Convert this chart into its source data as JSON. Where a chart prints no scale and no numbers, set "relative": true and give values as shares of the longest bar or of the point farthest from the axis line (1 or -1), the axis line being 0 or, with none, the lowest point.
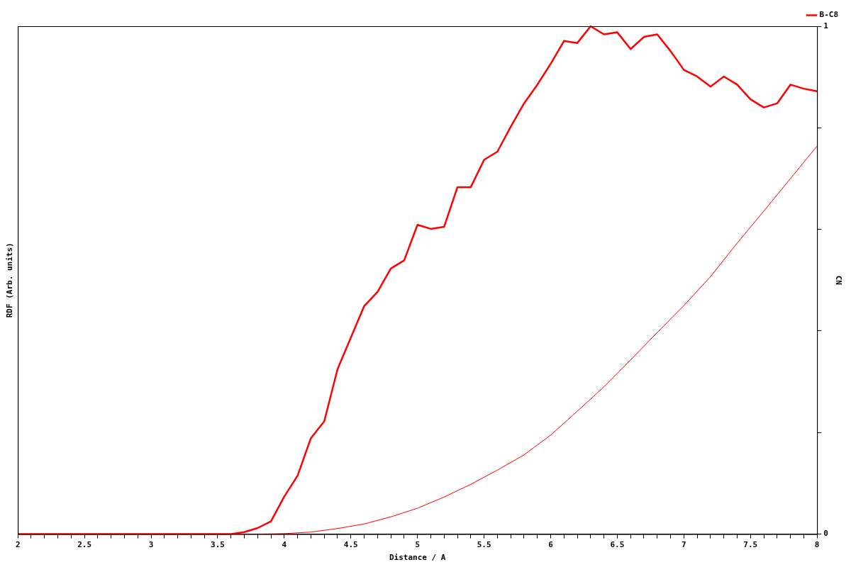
{
  "chart_data": {
    "type": "line",
    "xlabel": "Distance / A",
    "ylabel": "RDF (Arb. units)",
    "y2label": "CN",
    "relative": true,
    "legend": "top right",
    "grid": false,
    "xlim": [
      2,
      8
    ],
    "xticks": [
      2,
      {
        "value": 2.1,
        "label": null
      },
      {
        "value": 2.2,
        "label": null
      },
      {
        "value": 2.3,
        "label": null
      },
      {
        "value": 2.4,
        "label": null
      },
      2.5,
      {
        "value": 2.6,
        "label": null
      },
      {
        "value": 2.7,
        "label": null
      },
      {
        "value": 2.8,
        "label": null
      },
      {
        "value": 2.9,
        "label": null
      },
      3,
      {
        "value": 3.1,
        "label": null
      },
      {
        "value": 3.2,
        "label": null
      },
      {
        "value": 3.3,
        "label": null
      },
      {
        "value": 3.4,
        "label": null
      },
      3.5,
      {
        "value": 3.6,
        "label": null
      },
      {
        "value": 3.7,
        "label": null
      },
      {
        "value": 3.8,
        "label": null
      },
      {
        "value": 3.9,
        "label": null
      },
      4,
      {
        "value": 4.1,
        "label": null
      },
      {
        "value": 4.2,
        "label": null
      },
      {
        "value": 4.3,
        "label": null
      },
      {
        "value": 4.4,
        "label": null
      },
      4.5,
      {
        "value": 4.6,
        "label": null
      },
      {
        "value": 4.7,
        "label": null
      },
      {
        "value": 4.8,
        "label": null
      },
      {
        "value": 4.9,
        "label": null
      },
      5,
      {
        "value": 5.1,
        "label": null
      },
      {
        "value": 5.2,
        "label": null
      },
      {
        "value": 5.3,
        "label": null
      },
      {
        "value": 5.4,
        "label": null
      },
      5.5,
      {
        "value": 5.6,
        "label": null
      },
      {
        "value": 5.7,
        "label": null
      },
      {
        "value": 5.8,
        "label": null
      },
      {
        "value": 5.9,
        "label": null
      },
      6,
      {
        "value": 6.1,
        "label": null
      },
      {
        "value": 6.2,
        "label": null
      },
      {
        "value": 6.3,
        "label": null
      },
      {
        "value": 6.4,
        "label": null
      },
      6.5,
      {
        "value": 6.6,
        "label": null
      },
      {
        "value": 6.7,
        "label": null
      },
      {
        "value": 6.8,
        "label": null
      },
      {
        "value": 6.9,
        "label": null
      },
      7,
      {
        "value": 7.1,
        "label": null
      },
      {
        "value": 7.2,
        "label": null
      },
      {
        "value": 7.3,
        "label": null
      },
      {
        "value": 7.4,
        "label": null
      },
      7.5,
      {
        "value": 7.6,
        "label": null
      },
      {
        "value": 7.7,
        "label": null
      },
      {
        "value": 7.8,
        "label": null
      },
      {
        "value": 7.9,
        "label": null
      },
      8
    ],
    "y2lim": [
      0,
      1
    ],
    "y2ticks": [
      0,
      {
        "value": 0.2,
        "label": null
      },
      {
        "value": 0.4,
        "label": null
      },
      {
        "value": 0.6,
        "label": null
      },
      {
        "value": 0.8,
        "label": null
      },
      1
    ],
    "series": [
      {
        "name": "B-C8",
        "color": "#ff0000",
        "x": [
          2,
          3.6,
          3.7,
          3.8,
          3.9,
          4.0,
          4.1,
          4.2,
          4.3,
          4.4,
          4.5,
          4.6,
          4.7,
          4.8,
          4.9,
          5.0,
          5.1,
          5.2,
          5.3,
          5.4,
          5.5,
          5.6,
          5.7,
          5.8,
          5.9,
          6.0,
          6.1,
          6.2,
          6.3,
          6.4,
          6.5,
          6.6,
          6.7,
          6.8,
          6.9,
          7.0,
          7.1,
          7.2,
          7.3,
          7.4,
          7.5,
          7.6,
          7.7,
          7.8,
          7.9,
          8.0
        ],
        "values": [
          0,
          0,
          0.004,
          0.012,
          0.025,
          0.074,
          0.115,
          0.189,
          0.222,
          0.325,
          0.387,
          0.449,
          0.477,
          0.523,
          0.539,
          0.609,
          0.601,
          0.605,
          0.683,
          0.683,
          0.737,
          0.753,
          0.802,
          0.848,
          0.885,
          0.926,
          0.971,
          0.967,
          1,
          0.984,
          0.988,
          0.955,
          0.979,
          0.984,
          0.951,
          0.914,
          0.901,
          0.881,
          0.901,
          0.885,
          0.856,
          0.84,
          0.848,
          0.885,
          0.877,
          0.872
        ]
      },
      {
        "color": "#ff0000",
        "axis": "y2",
        "x": [
          2,
          3.8,
          4.0,
          4.2,
          4.4,
          4.6,
          4.8,
          5.0,
          5.2,
          5.4,
          5.6,
          5.8,
          6.0,
          6.2,
          6.4,
          6.6,
          6.8,
          7.0,
          7.2,
          7.4,
          7.6,
          7.8,
          8.0
        ],
        "values": [
          0,
          0,
          0.001,
          0.004,
          0.011,
          0.02,
          0.034,
          0.051,
          0.073,
          0.098,
          0.126,
          0.156,
          0.195,
          0.242,
          0.29,
          0.343,
          0.397,
          0.45,
          0.507,
          0.573,
          0.636,
          0.7,
          0.764
        ]
      }
    ]
  }
}
